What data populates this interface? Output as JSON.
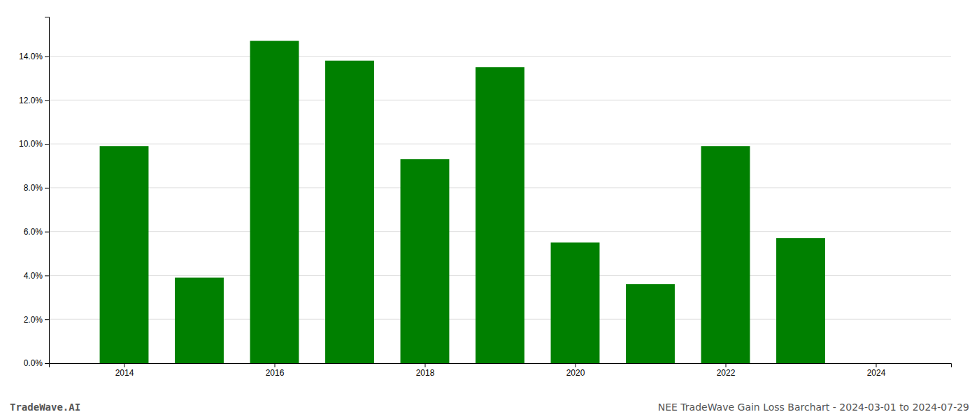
{
  "chart_data": {
    "type": "bar",
    "x": [
      2014,
      2015,
      2016,
      2017,
      2018,
      2019,
      2020,
      2021,
      2022,
      2023
    ],
    "values": [
      0.099,
      0.039,
      0.147,
      0.138,
      0.093,
      0.135,
      0.055,
      0.036,
      0.099,
      0.057
    ],
    "color": "#008000",
    "xlim": [
      2013.0,
      2025.0
    ],
    "xticks": [
      2014,
      2016,
      2018,
      2020,
      2022,
      2024
    ],
    "ylim": [
      0,
      0.158
    ],
    "yticks": [
      {
        "value": 0.0,
        "label": "0.0%"
      },
      {
        "value": 0.02,
        "label": "2.0%"
      },
      {
        "value": 0.04,
        "label": "4.0%"
      },
      {
        "value": 0.06,
        "label": "6.0%"
      },
      {
        "value": 0.08,
        "label": "8.0%"
      },
      {
        "value": 0.1,
        "label": "10.0%"
      },
      {
        "value": 0.12,
        "label": "12.0%"
      },
      {
        "value": 0.14,
        "label": "14.0%"
      }
    ],
    "grid": true,
    "annotations": [
      "TradeWave.AI",
      "NEE TradeWave Gain Loss Barchart - 2024-03-01 to 2024-07-29"
    ]
  }
}
